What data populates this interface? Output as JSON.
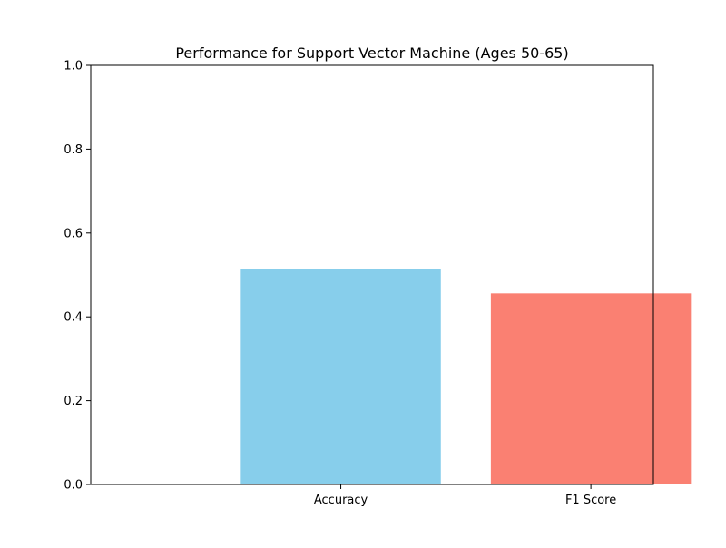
{
  "chart_data": {
    "type": "bar",
    "title": "Performance for Support Vector Machine (Ages 50-65)",
    "xlabel": "",
    "ylabel": "",
    "categories": [
      "Accuracy",
      "F1 Score"
    ],
    "values": [
      0.515,
      0.456
    ],
    "colors": [
      "#87ceeb",
      "#fa8072"
    ],
    "ylim": [
      0,
      1.0
    ],
    "yticks": [
      "0.0",
      "0.2",
      "0.4",
      "0.6",
      "0.8",
      "1.0"
    ],
    "grid": false,
    "legend": "none"
  }
}
